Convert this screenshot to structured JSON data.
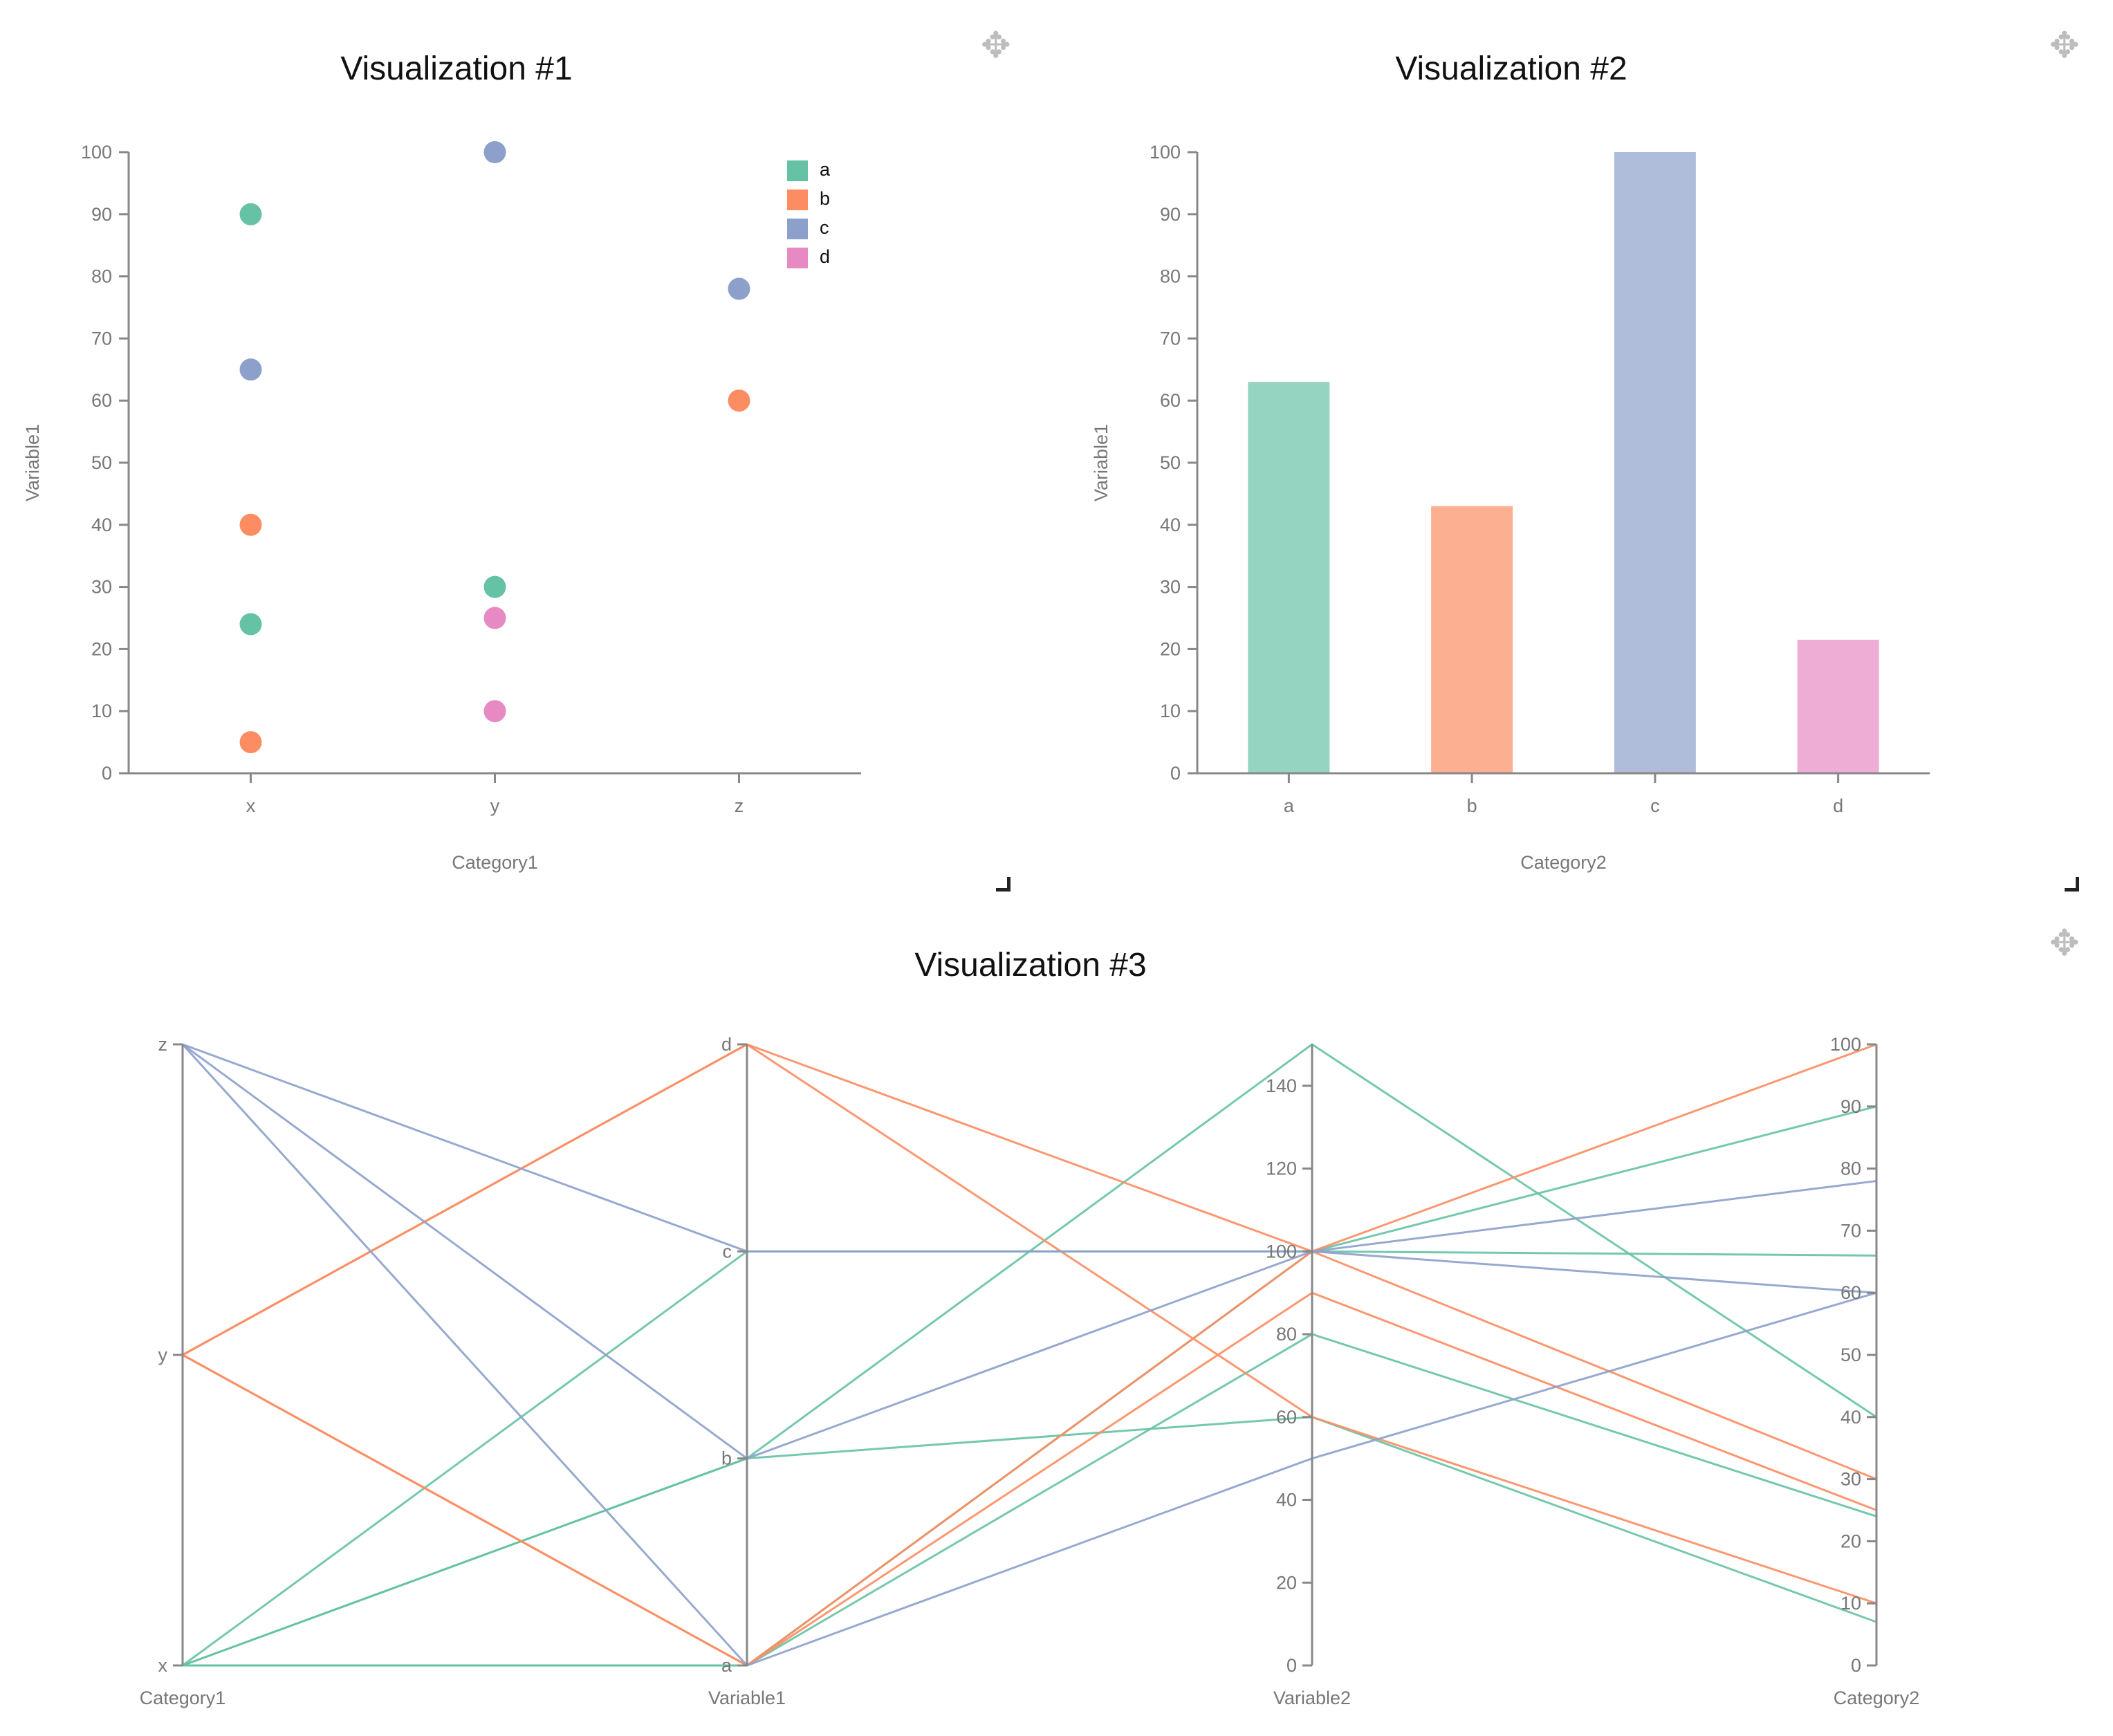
{
  "colors": {
    "a": "#66c2a5",
    "b": "#fc8d62",
    "c": "#8da0cb",
    "d": "#e78ac3"
  },
  "viz1": {
    "title": "Visualization #1",
    "move_icon": "move-icon",
    "resize_icon": "resize-handle-icon",
    "chart_data": {
      "type": "scatter",
      "title": "Visualization #1",
      "xlabel": "Category1",
      "ylabel": "Variable1",
      "categories": [
        "x",
        "y",
        "z"
      ],
      "ylim": [
        0,
        100
      ],
      "yticks": [
        0,
        10,
        20,
        30,
        40,
        50,
        60,
        70,
        80,
        90,
        100
      ],
      "legend": [
        "a",
        "b",
        "c",
        "d"
      ],
      "legend_position": "top-right",
      "points": [
        {
          "x": "x",
          "y": 90,
          "group": "a"
        },
        {
          "x": "x",
          "y": 65,
          "group": "c"
        },
        {
          "x": "x",
          "y": 40,
          "group": "b"
        },
        {
          "x": "x",
          "y": 24,
          "group": "a"
        },
        {
          "x": "x",
          "y": 5,
          "group": "b"
        },
        {
          "x": "y",
          "y": 100,
          "group": "c"
        },
        {
          "x": "y",
          "y": 30,
          "group": "a"
        },
        {
          "x": "y",
          "y": 25,
          "group": "d"
        },
        {
          "x": "y",
          "y": 10,
          "group": "d"
        },
        {
          "x": "z",
          "y": 78,
          "group": "c"
        },
        {
          "x": "z",
          "y": 60,
          "group": "b"
        }
      ]
    }
  },
  "viz2": {
    "title": "Visualization #2",
    "move_icon": "move-icon",
    "resize_icon": "resize-handle-icon",
    "chart_data": {
      "type": "bar",
      "title": "Visualization #2",
      "xlabel": "Category2",
      "ylabel": "Variable1",
      "categories": [
        "a",
        "b",
        "c",
        "d"
      ],
      "values": [
        63,
        43,
        100,
        21.5
      ],
      "ylim": [
        0,
        100
      ],
      "yticks": [
        0,
        10,
        20,
        30,
        40,
        50,
        60,
        70,
        80,
        90,
        100
      ]
    }
  },
  "viz3": {
    "title": "Visualization #3",
    "move_icon": "move-icon",
    "chart_data": {
      "type": "parallel-coordinates",
      "title": "Visualization #3",
      "axes": [
        {
          "name": "Category1",
          "kind": "categorical",
          "values": [
            "x",
            "y",
            "z"
          ]
        },
        {
          "name": "Variable1",
          "kind": "categorical",
          "values": [
            "a",
            "b",
            "c",
            "d"
          ]
        },
        {
          "name": "Variable2",
          "kind": "numeric",
          "range": [
            0,
            150
          ],
          "ticks": [
            0,
            20,
            40,
            60,
            80,
            100,
            120,
            140
          ]
        },
        {
          "name": "Category2",
          "kind": "numeric",
          "range": [
            0,
            100
          ],
          "ticks": [
            0,
            10,
            20,
            30,
            40,
            50,
            60,
            70,
            80,
            90,
            100
          ]
        }
      ],
      "lines": [
        {
          "group": "a",
          "values": [
            "x",
            "b",
            150,
            40
          ]
        },
        {
          "group": "a",
          "values": [
            "x",
            "c",
            100,
            66
          ]
        },
        {
          "group": "a",
          "values": [
            "x",
            "b",
            60,
            7
          ]
        },
        {
          "group": "a",
          "values": [
            "x",
            "a",
            100,
            90
          ]
        },
        {
          "group": "a",
          "values": [
            "x",
            "a",
            80,
            24
          ]
        },
        {
          "group": "b",
          "values": [
            "y",
            "d",
            100,
            30
          ]
        },
        {
          "group": "b",
          "values": [
            "y",
            "a",
            90,
            25
          ]
        },
        {
          "group": "b",
          "values": [
            "y",
            "d",
            60,
            10
          ]
        },
        {
          "group": "b",
          "values": [
            "y",
            "a",
            100,
            100
          ]
        },
        {
          "group": "c",
          "values": [
            "z",
            "c",
            100,
            60
          ]
        },
        {
          "group": "c",
          "values": [
            "z",
            "b",
            100,
            78
          ]
        },
        {
          "group": "c",
          "values": [
            "z",
            "a",
            50,
            60
          ]
        }
      ]
    }
  }
}
